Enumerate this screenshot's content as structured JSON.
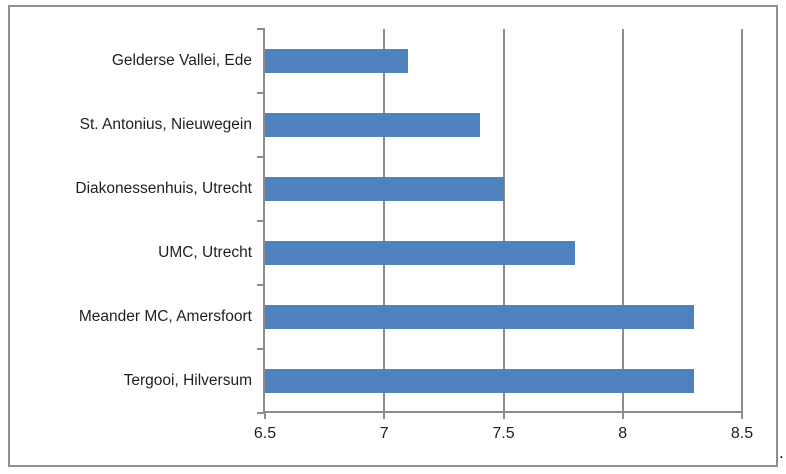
{
  "chart_data": {
    "type": "bar",
    "orientation": "horizontal",
    "title": "",
    "xlabel": "",
    "ylabel": "",
    "categories": [
      "Gelderse Vallei, Ede",
      "St. Antonius, Nieuwegein",
      "Diakonessenhuis, Utrecht",
      "UMC, Utrecht",
      "Meander MC, Amersfoort",
      "Tergooi, Hilversum"
    ],
    "values": [
      7.1,
      7.4,
      7.5,
      7.8,
      8.3,
      8.3
    ],
    "xlim": [
      6.5,
      8.5
    ],
    "x_tick_values": [
      6.5,
      7,
      7.5,
      8,
      8.5
    ],
    "x_tick_labels": [
      "6.5",
      "7",
      "7.5",
      "8",
      "8.5"
    ],
    "grid": true,
    "legend": false,
    "colors": {
      "bar": "#4f81bd",
      "gridline": "#8c8c8c",
      "axis": "#8c8c8c",
      "border": "#8f8f8f",
      "text": "#1f1f1f",
      "background": "#ffffff"
    }
  },
  "page": {
    "trailing_period": "."
  }
}
